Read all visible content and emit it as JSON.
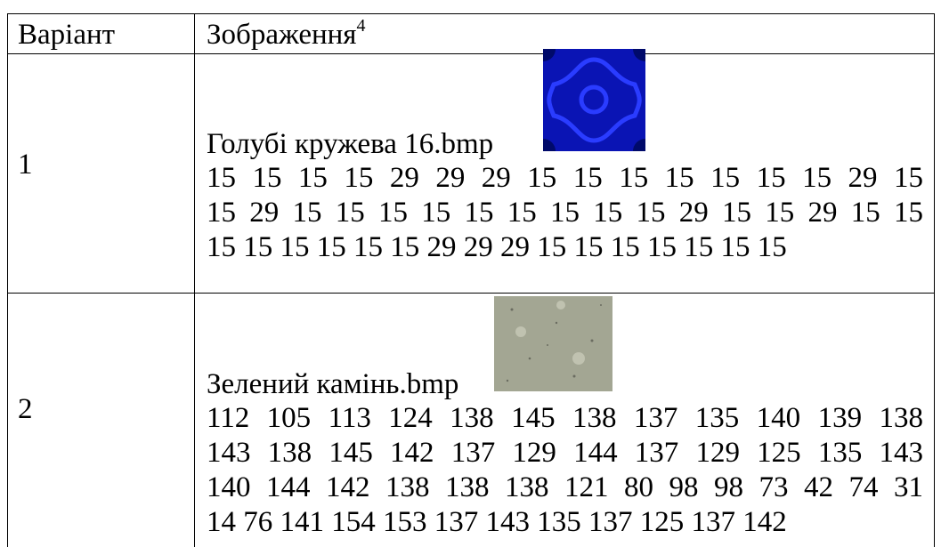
{
  "table": {
    "header": [
      "Варіант",
      {
        "text": "Зображення",
        "footnote": "4"
      }
    ],
    "rows": [
      {
        "variant": "1",
        "file": "Голубі кружева 16.bmp",
        "number_lines": [
          " 15 15 15 15 29 29 29 15 15 15 15 15 15 15 29 15",
          "15 29 15 15 15 15 15 15 15 15 15 29 15 15 29 15 15",
          "15 15 15 15 15 15 29 29 29 15 15 15 15 15 15 15"
        ]
      },
      {
        "variant": "2",
        "file": "Зелений камінь.bmp",
        "number_lines": [
          " 112 105 113 124 138 145 138 137 135 140 139 138",
          "143 138 145 142 137 129 144 137 129 125 135 143",
          "140 144 142 138 138 138 121 80 98 98 73 42 74 31",
          "14 76 141 154 153 137 143 135 137 125 137 142"
        ]
      }
    ]
  }
}
